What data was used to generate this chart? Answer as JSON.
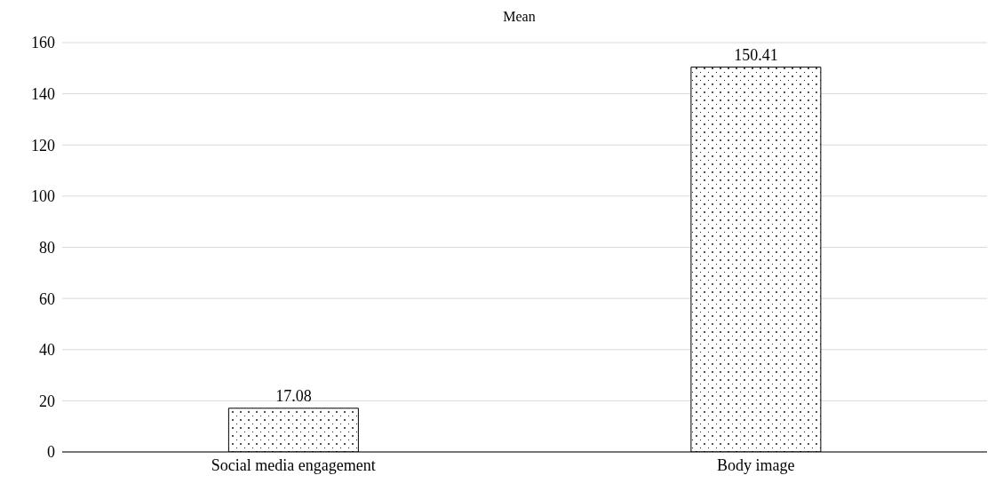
{
  "chart_data": {
    "type": "bar",
    "title": "Mean",
    "categories": [
      "Social media engagement",
      "Body image"
    ],
    "values": [
      17.08,
      150.41
    ],
    "color": "#000000",
    "ylim": [
      0,
      160
    ],
    "yticks": [
      0,
      20,
      40,
      60,
      80,
      100,
      120,
      140,
      160
    ],
    "grid": "y",
    "data_labels": true
  }
}
